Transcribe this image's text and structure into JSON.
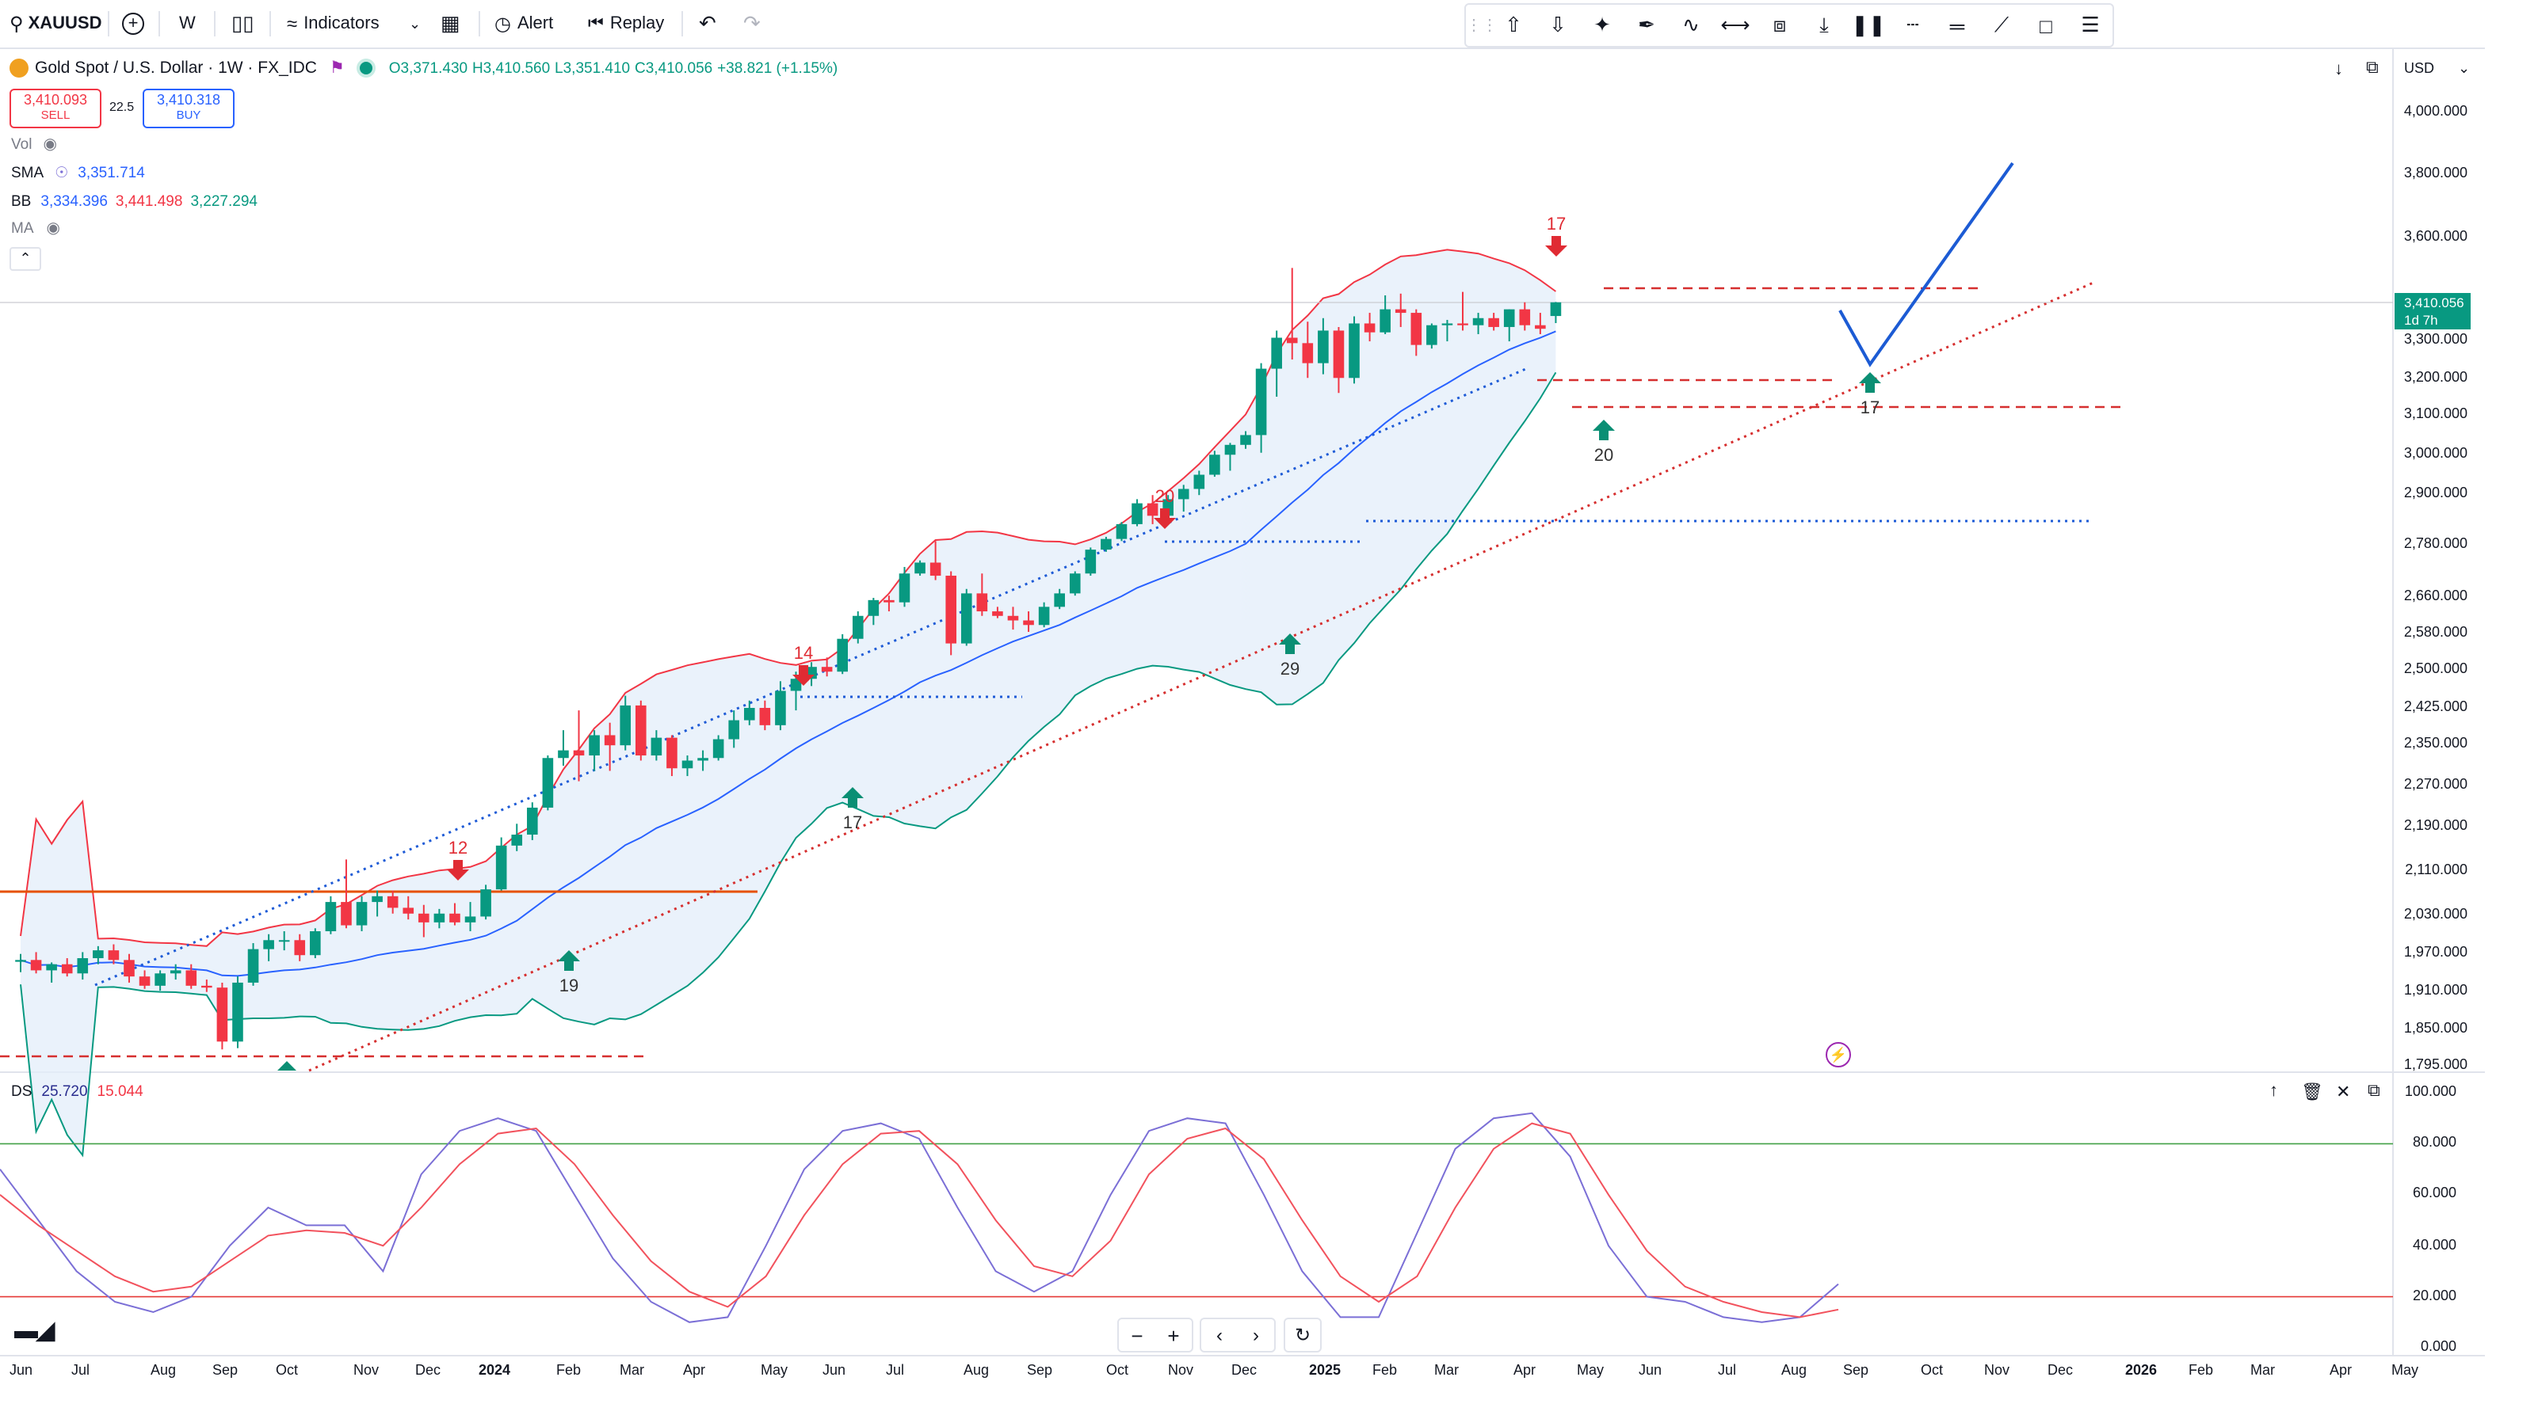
{
  "toolbar": {
    "symbol": "XAUUSD",
    "interval": "W",
    "indicators_label": "Indicators",
    "alert_label": "Alert",
    "replay_label": "Replay"
  },
  "legend": {
    "title": "Gold Spot / U.S. Dollar · 1W · FX_IDC",
    "o": "O3,371.430",
    "h": "H3,410.560",
    "l": "L3,351.410",
    "c": "C3,410.056",
    "chg": "+38.821 (+1.15%)",
    "sell_price": "3,410.093",
    "sell_label": "SELL",
    "spread": "22.5",
    "buy_price": "3,410.318",
    "buy_label": "BUY",
    "vol_label": "Vol",
    "sma_label": "SMA",
    "sma_value": "3,351.714",
    "bb_label": "BB",
    "bb_mid": "3,334.396",
    "bb_up": "3,441.498",
    "bb_low": "3,227.294",
    "ma_label": "MA"
  },
  "currency": "USD",
  "price_tag": {
    "value": "3,410.056",
    "countdown": "1d 7h"
  },
  "osc_legend": {
    "label": "DS",
    "k": "25.720",
    "d": "15.044"
  },
  "colors": {
    "up": "#089981",
    "down": "#f23645",
    "sma": "#2962ff",
    "bb_up": "#f23645",
    "bb_low": "#089981",
    "bb_fill": "#e3eefa",
    "trend_blue": "#1e5bd6",
    "trend_red": "#d62f2f",
    "osc_k": "#7b6fd6",
    "osc_d": "#f2525d",
    "orange": "#e65100",
    "projection": "#1c5bd4"
  },
  "chart_data": [
    {
      "type": "candlestick",
      "title": "Gold Spot / U.S. Dollar · 1W · FX_IDC",
      "scale": "log",
      "ylim": [
        1780,
        4080
      ],
      "y_ticks": [
        "4,000.000",
        "3,800.000",
        "3,600.000",
        "3,300.000",
        "3,200.000",
        "3,100.000",
        "3,000.000",
        "2,900.000",
        "2,780.000",
        "2,660.000",
        "2,580.000",
        "2,500.000",
        "2,425.000",
        "2,350.000",
        "2,270.000",
        "2,190.000",
        "2,110.000",
        "2,030.000",
        "1,970.000",
        "1,910.000",
        "1,850.000",
        "1,795.000"
      ],
      "x_ticks": [
        "Jun",
        "Jul",
        "Aug",
        "Sep",
        "Oct",
        "Nov",
        "Dec",
        "2024",
        "Feb",
        "Mar",
        "Apr",
        "May",
        "Jun",
        "Jul",
        "Aug",
        "Sep",
        "Oct",
        "Nov",
        "Dec",
        "2025",
        "Feb",
        "Mar",
        "Apr",
        "May",
        "Jun",
        "Jul",
        "Aug",
        "Sep",
        "Oct",
        "Nov",
        "Dec",
        "2026",
        "Feb",
        "Mar",
        "Apr",
        "May"
      ],
      "candles": [
        [
          1959,
          1972,
          1942,
          1962
        ],
        [
          1962,
          1975,
          1940,
          1945
        ],
        [
          1945,
          1958,
          1925,
          1955
        ],
        [
          1955,
          1965,
          1935,
          1940
        ],
        [
          1940,
          1975,
          1930,
          1965
        ],
        [
          1965,
          1985,
          1955,
          1978
        ],
        [
          1978,
          1988,
          1955,
          1962
        ],
        [
          1962,
          1972,
          1925,
          1935
        ],
        [
          1935,
          1945,
          1915,
          1920
        ],
        [
          1920,
          1945,
          1912,
          1940
        ],
        [
          1940,
          1955,
          1930,
          1945
        ],
        [
          1945,
          1955,
          1915,
          1920
        ],
        [
          1920,
          1930,
          1910,
          1917
        ],
        [
          1917,
          1925,
          1820,
          1832
        ],
        [
          1832,
          1935,
          1822,
          1925
        ],
        [
          1925,
          1990,
          1920,
          1980
        ],
        [
          1980,
          2005,
          1960,
          1995
        ],
        [
          1995,
          2010,
          1978,
          1995
        ],
        [
          1995,
          2005,
          1960,
          1970
        ],
        [
          1970,
          2015,
          1965,
          2010
        ],
        [
          2010,
          2070,
          2005,
          2060
        ],
        [
          2060,
          2135,
          2015,
          2020
        ],
        [
          2020,
          2070,
          2010,
          2060
        ],
        [
          2060,
          2080,
          2035,
          2070
        ],
        [
          2070,
          2080,
          2040,
          2050
        ],
        [
          2050,
          2070,
          2030,
          2040
        ],
        [
          2040,
          2055,
          2000,
          2025
        ],
        [
          2025,
          2048,
          2015,
          2040
        ],
        [
          2040,
          2058,
          2020,
          2025
        ],
        [
          2025,
          2060,
          2010,
          2035
        ],
        [
          2035,
          2090,
          2030,
          2082
        ],
        [
          2082,
          2175,
          2080,
          2160
        ],
        [
          2160,
          2200,
          2150,
          2180
        ],
        [
          2180,
          2240,
          2170,
          2230
        ],
        [
          2230,
          2330,
          2225,
          2325
        ],
        [
          2325,
          2380,
          2310,
          2340
        ],
        [
          2340,
          2420,
          2280,
          2330
        ],
        [
          2330,
          2380,
          2300,
          2370
        ],
        [
          2370,
          2395,
          2300,
          2350
        ],
        [
          2350,
          2450,
          2340,
          2430
        ],
        [
          2430,
          2440,
          2320,
          2330
        ],
        [
          2330,
          2380,
          2320,
          2365
        ],
        [
          2365,
          2370,
          2290,
          2305
        ],
        [
          2305,
          2330,
          2290,
          2320
        ],
        [
          2320,
          2340,
          2300,
          2325
        ],
        [
          2325,
          2370,
          2320,
          2362
        ],
        [
          2362,
          2420,
          2345,
          2400
        ],
        [
          2400,
          2440,
          2390,
          2425
        ],
        [
          2425,
          2440,
          2380,
          2390
        ],
        [
          2390,
          2480,
          2380,
          2460
        ],
        [
          2460,
          2500,
          2420,
          2485
        ],
        [
          2485,
          2520,
          2470,
          2510
        ],
        [
          2510,
          2530,
          2490,
          2500
        ],
        [
          2500,
          2580,
          2495,
          2570
        ],
        [
          2570,
          2630,
          2560,
          2620
        ],
        [
          2620,
          2660,
          2600,
          2655
        ],
        [
          2655,
          2665,
          2630,
          2650
        ],
        [
          2650,
          2730,
          2640,
          2715
        ],
        [
          2715,
          2745,
          2710,
          2740
        ],
        [
          2740,
          2790,
          2700,
          2710
        ],
        [
          2710,
          2720,
          2535,
          2560
        ],
        [
          2560,
          2680,
          2555,
          2670
        ],
        [
          2670,
          2715,
          2620,
          2630
        ],
        [
          2630,
          2640,
          2615,
          2620
        ],
        [
          2620,
          2640,
          2590,
          2610
        ],
        [
          2610,
          2630,
          2585,
          2600
        ],
        [
          2600,
          2650,
          2595,
          2640
        ],
        [
          2640,
          2680,
          2635,
          2670
        ],
        [
          2670,
          2720,
          2665,
          2715
        ],
        [
          2715,
          2775,
          2710,
          2770
        ],
        [
          2770,
          2800,
          2765,
          2795
        ],
        [
          2795,
          2835,
          2790,
          2830
        ],
        [
          2830,
          2890,
          2825,
          2880
        ],
        [
          2880,
          2900,
          2830,
          2850
        ],
        [
          2850,
          2900,
          2845,
          2890
        ],
        [
          2890,
          2925,
          2860,
          2915
        ],
        [
          2915,
          2960,
          2900,
          2950
        ],
        [
          2950,
          3010,
          2945,
          3000
        ],
        [
          3000,
          3030,
          2960,
          3025
        ],
        [
          3025,
          3060,
          3015,
          3050
        ],
        [
          3050,
          3240,
          3005,
          3225
        ],
        [
          3225,
          3330,
          3150,
          3310
        ],
        [
          3310,
          3510,
          3250,
          3295
        ],
        [
          3295,
          3355,
          3200,
          3240
        ],
        [
          3240,
          3365,
          3210,
          3330
        ],
        [
          3330,
          3340,
          3160,
          3200
        ],
        [
          3200,
          3370,
          3185,
          3350
        ],
        [
          3350,
          3380,
          3300,
          3325
        ],
        [
          3325,
          3430,
          3320,
          3390
        ],
        [
          3390,
          3435,
          3340,
          3380
        ],
        [
          3380,
          3390,
          3260,
          3290
        ],
        [
          3290,
          3350,
          3280,
          3345
        ],
        [
          3345,
          3360,
          3300,
          3350
        ],
        [
          3350,
          3440,
          3330,
          3345
        ],
        [
          3345,
          3380,
          3320,
          3365
        ],
        [
          3365,
          3380,
          3330,
          3340
        ],
        [
          3340,
          3390,
          3300,
          3390
        ],
        [
          3390,
          3410,
          3330,
          3345
        ],
        [
          3345,
          3380,
          3320,
          3335
        ],
        [
          3371,
          3411,
          3351,
          3410
        ]
      ],
      "annotations": [
        {
          "text": "12",
          "kind": "down-arrow"
        },
        {
          "text": "14",
          "kind": "down-arrow"
        },
        {
          "text": "20",
          "kind": "down-arrow"
        },
        {
          "text": "17",
          "kind": "down-arrow"
        },
        {
          "text": "19",
          "kind": "up-arrow"
        },
        {
          "text": "17",
          "kind": "up-arrow"
        },
        {
          "text": "29",
          "kind": "up-arrow"
        },
        {
          "text": "20",
          "kind": "up-arrow"
        },
        {
          "text": "17",
          "kind": "up-arrow"
        }
      ]
    },
    {
      "type": "line",
      "title": "DS",
      "ylim": [
        0,
        100
      ],
      "y_ticks": [
        "100.000",
        "80.000",
        "60.000",
        "40.000",
        "20.000",
        "0.000"
      ],
      "levels": [
        80,
        20
      ],
      "series": [
        {
          "name": "25.720",
          "values": [
            70,
            50,
            30,
            18,
            14,
            20,
            40,
            55,
            48,
            48,
            30,
            68,
            85,
            90,
            85,
            60,
            35,
            18,
            10,
            12,
            40,
            70,
            85,
            88,
            82,
            55,
            30,
            22,
            30,
            60,
            85,
            90,
            88,
            60,
            30,
            12,
            12,
            45,
            78,
            90,
            92,
            75,
            40,
            20,
            18,
            12,
            10,
            12,
            25
          ]
        },
        {
          "name": "15.044",
          "values": [
            60,
            48,
            38,
            28,
            22,
            24,
            34,
            44,
            46,
            45,
            40,
            55,
            72,
            84,
            86,
            72,
            52,
            34,
            22,
            16,
            28,
            52,
            72,
            84,
            85,
            72,
            50,
            32,
            28,
            42,
            68,
            82,
            86,
            74,
            50,
            28,
            18,
            28,
            55,
            78,
            88,
            84,
            60,
            38,
            24,
            18,
            14,
            12,
            15
          ]
        }
      ]
    }
  ]
}
